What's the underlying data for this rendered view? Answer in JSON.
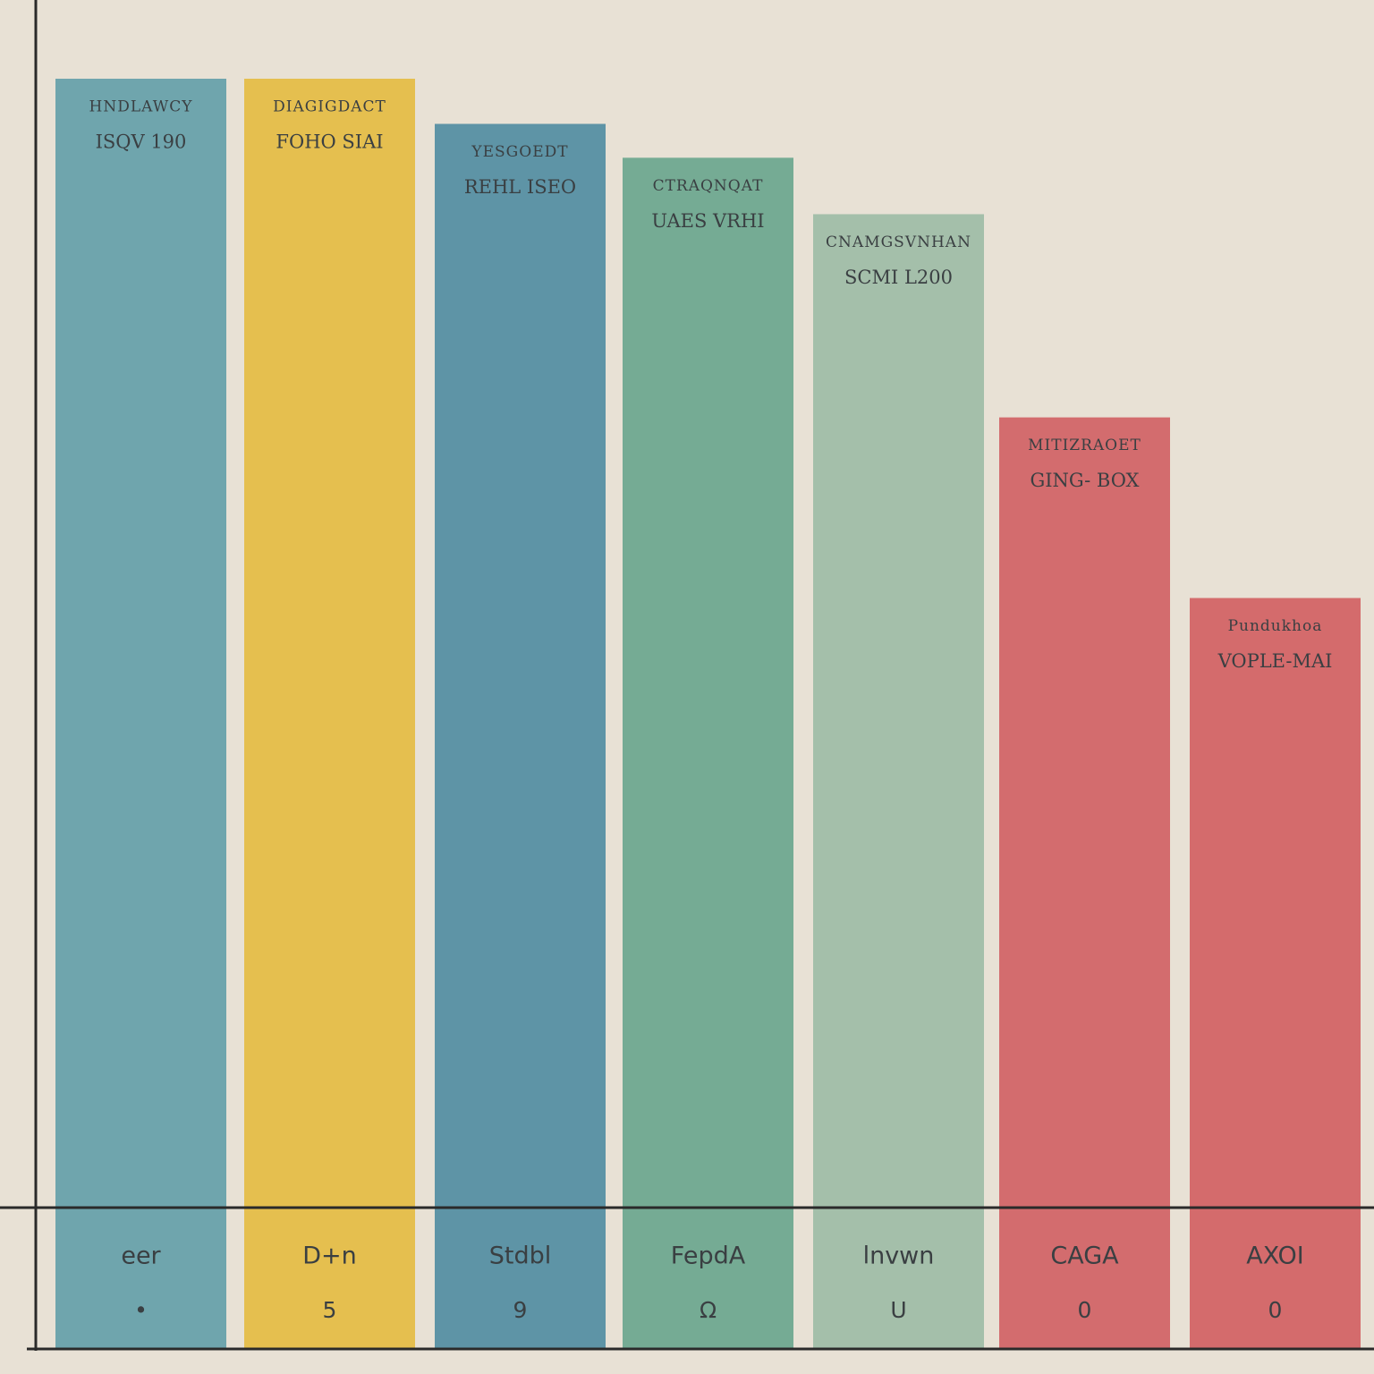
{
  "chart_data": {
    "type": "bar",
    "categories": [
      "eer",
      "D+n",
      "Stdbl",
      "FepdA",
      "lnvwn",
      "CAGA",
      "AXOI"
    ],
    "values": [
      100,
      100,
      96,
      93,
      88,
      70,
      54
    ],
    "top_labels": [
      [
        "HNDLAWCY",
        "ISQV 190"
      ],
      [
        "DIAGIGDACT",
        "FOHO SIAI"
      ],
      [
        "YESGOEDT",
        "REHL ISEO"
      ],
      [
        "CTRAQNQAT",
        "UAES VRHI"
      ],
      [
        "CNAMGSVNHAN",
        "SCMI L200"
      ],
      [
        "MITIZRAOET",
        "GING- BOX"
      ],
      [
        "Pundukhoa",
        "VOPLE-MAI"
      ]
    ],
    "codes": [
      "•",
      "5",
      "9",
      "Ω",
      "U",
      "0",
      "0"
    ],
    "colors": [
      "#6fa5ad",
      "#e5bf4f",
      "#5e94a6",
      "#75ab94",
      "#a4bfaa",
      "#d36c6e",
      "#d46b6c"
    ]
  }
}
